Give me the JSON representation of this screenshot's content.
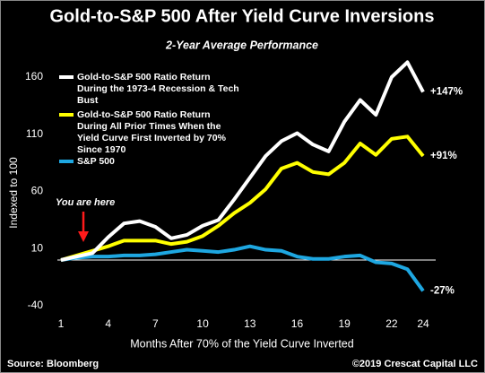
{
  "chart_data": {
    "type": "line",
    "title": "Gold-to-S&P 500 After Yield Curve Inversions",
    "subtitle": "2-Year Average Performance",
    "y_label": "Indexed to 100",
    "x_label": "Months After 70% of the Yield Curve Inverted",
    "annotation": "You are here",
    "source": "Source: Bloomberg",
    "credit": "©2019 Crescat Capital LLC",
    "categories": [
      "1",
      null,
      null,
      "4",
      null,
      null,
      "7",
      null,
      null,
      "10",
      null,
      null,
      "13",
      null,
      null,
      "16",
      null,
      null,
      "19",
      null,
      null,
      "22",
      null,
      "24"
    ],
    "ylim": [
      -40,
      160
    ],
    "yticks": [
      -40,
      10,
      60,
      110,
      160
    ],
    "grid": false,
    "series": [
      {
        "name": "Gold-to-S&P 500 Ratio Return During the 1973-4 Recession & Tech Bust",
        "color": "#ffffff",
        "values": [
          0,
          3,
          6,
          20,
          32,
          34,
          29,
          19,
          22,
          30,
          35,
          53,
          72,
          91,
          104,
          111,
          101,
          95,
          121,
          140,
          127,
          160,
          173,
          147
        ],
        "value_labels": [
          null,
          null,
          null,
          null,
          null,
          null,
          null,
          null,
          null,
          null,
          null,
          null,
          null,
          null,
          null,
          null,
          null,
          null,
          null,
          null,
          null,
          null,
          null,
          "+147%"
        ]
      },
      {
        "name": "Gold-to-S&P 500 Ratio Return During All Prior Times When the Yield Curve First Inverted by 70% Since 1970",
        "color": "#ffff00",
        "values": [
          0,
          4,
          8,
          12,
          17,
          17,
          17,
          14,
          16,
          21,
          30,
          41,
          50,
          62,
          80,
          85,
          77,
          75,
          85,
          102,
          92,
          106,
          108,
          91
        ],
        "value_labels": [
          null,
          null,
          null,
          null,
          null,
          null,
          null,
          null,
          null,
          null,
          null,
          null,
          null,
          null,
          null,
          null,
          null,
          null,
          null,
          null,
          null,
          null,
          null,
          "+91%"
        ]
      },
      {
        "name": "S&P 500",
        "color": "#1ea7e1",
        "values": [
          0,
          2,
          3,
          3,
          4,
          4,
          5,
          7,
          9,
          8,
          7,
          9,
          12,
          9,
          8,
          3,
          1,
          1,
          3,
          4,
          -2,
          -3,
          -8,
          -27
        ],
        "value_labels": [
          null,
          null,
          null,
          null,
          null,
          null,
          null,
          null,
          null,
          null,
          null,
          null,
          null,
          null,
          null,
          null,
          null,
          null,
          null,
          null,
          null,
          null,
          null,
          "-27%"
        ]
      }
    ]
  }
}
